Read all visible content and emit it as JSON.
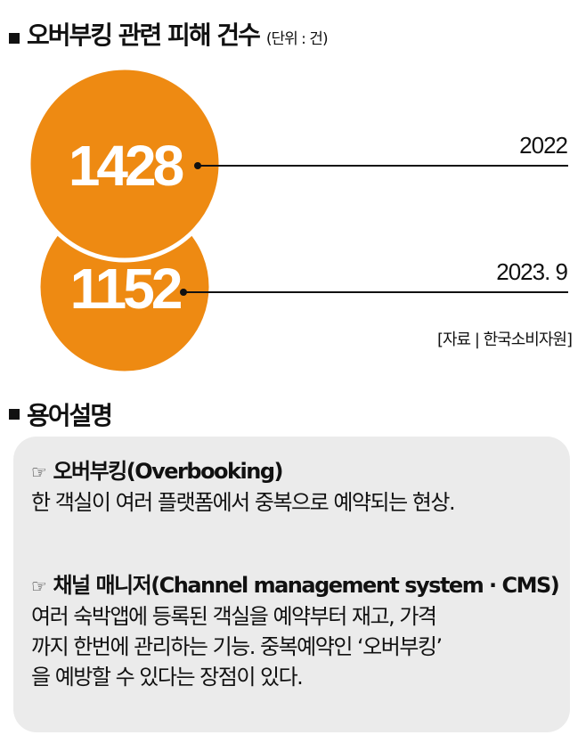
{
  "chart_data": {
    "type": "bubble",
    "title": "오버부킹 관련 피해 건수",
    "unit": "(단위 : 건)",
    "categories": [
      "2022",
      "2023. 9"
    ],
    "values": [
      1428,
      1152
    ],
    "color": "#ee8a12",
    "source": "[자료 | 한국소비자원]"
  },
  "glossary": {
    "title": "용어설명",
    "pointer_icon": "☞",
    "terms": [
      {
        "term": "오버부킹(Overbooking)",
        "lines": [
          "한 객실이 여러 플랫폼에서 중복으로 예약되는 현상."
        ]
      },
      {
        "term": "채널 매니저(Channel management system · CMS)",
        "lines": [
          "여러 숙박앱에 등록된 객실을 예약부터 재고, 가격",
          "까지 한번에 관리하는 기능. 중복예약인 ‘오버부킹’",
          "을 예방할 수 있다는 장점이 있다."
        ]
      }
    ]
  }
}
